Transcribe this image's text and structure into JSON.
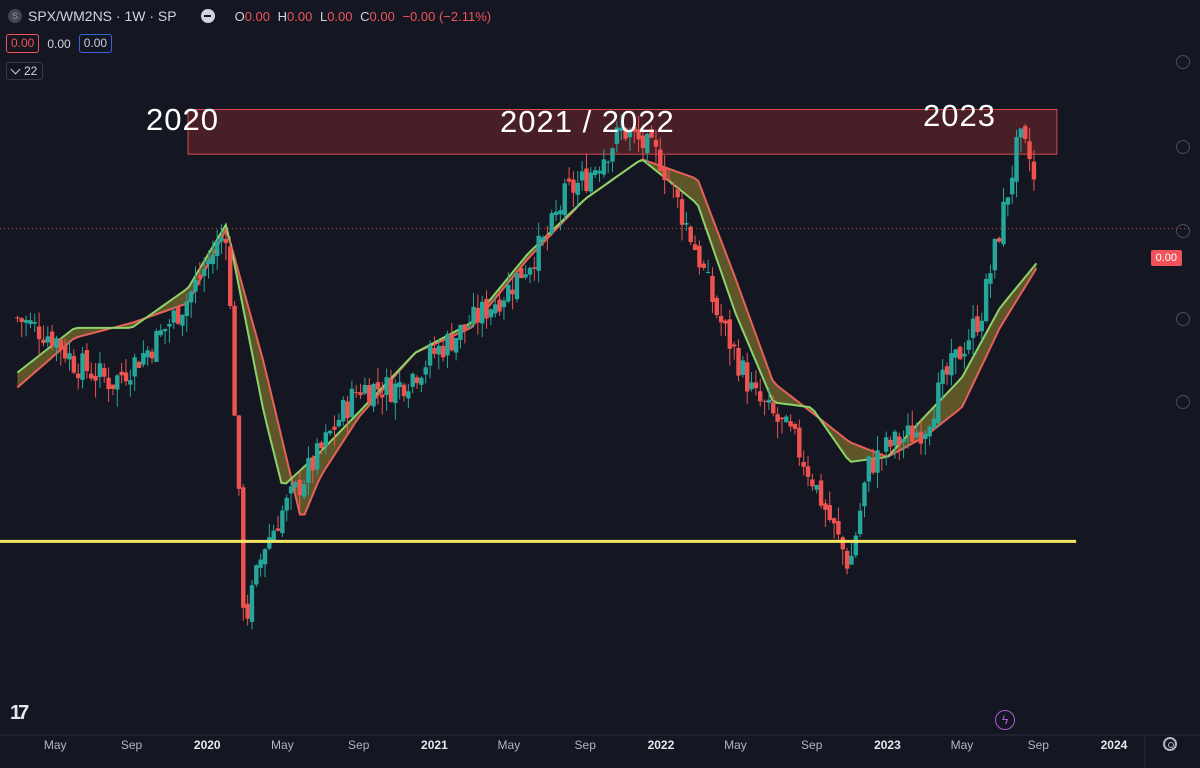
{
  "header": {
    "symbol_badge": "S",
    "symbol": "SPX/WM2NS · 1W · SP",
    "ohlc": [
      {
        "key": "O",
        "value": "0.00"
      },
      {
        "key": "H",
        "value": "0.00"
      },
      {
        "key": "L",
        "value": "0.00"
      },
      {
        "key": "C",
        "value": "0.00"
      }
    ],
    "change": "−0.00 (−2.11%)"
  },
  "indicator": {
    "val_red": "0.00",
    "val_mid": "0.00",
    "val_blue": "0.00"
  },
  "collapse": {
    "count": "22"
  },
  "annotations": [
    "2020",
    "2021 / 2022",
    "2023"
  ],
  "price_label": "0.00",
  "colors": {
    "up": "#26a69a",
    "down": "#ef5350",
    "fast_ma": "#8bd36a",
    "slow_ma": "#e8605a",
    "fill": "#9a8a2e",
    "resistance": "#8a2a2e",
    "support": "#f5e663"
  },
  "icons": {
    "logo": "tradingview-logo-icon",
    "bolt": "lightning-icon",
    "settings": "gear-icon"
  },
  "chart_data": {
    "type": "candlestick",
    "title": "SPX/WM2NS · 1W · SP",
    "x_ticks": [
      {
        "label": "May",
        "date": "2019-05"
      },
      {
        "label": "Sep",
        "date": "2019-09"
      },
      {
        "label": "2020",
        "date": "2020-01"
      },
      {
        "label": "May",
        "date": "2020-05"
      },
      {
        "label": "Sep",
        "date": "2020-09"
      },
      {
        "label": "2021",
        "date": "2021-01"
      },
      {
        "label": "May",
        "date": "2021-05"
      },
      {
        "label": "Sep",
        "date": "2021-09"
      },
      {
        "label": "2022",
        "date": "2022-01"
      },
      {
        "label": "May",
        "date": "2022-05"
      },
      {
        "label": "Sep",
        "date": "2022-09"
      },
      {
        "label": "2023",
        "date": "2023-01"
      },
      {
        "label": "May",
        "date": "2023-05"
      },
      {
        "label": "Sep",
        "date": "2023-09"
      },
      {
        "label": "2024",
        "date": "2024-01"
      }
    ],
    "y_ticks": [],
    "close_path": [
      {
        "date": "2019-03",
        "v": 0.54
      },
      {
        "date": "2019-05",
        "v": 0.5
      },
      {
        "date": "2019-06",
        "v": 0.45
      },
      {
        "date": "2019-08",
        "v": 0.41
      },
      {
        "date": "2019-10",
        "v": 0.48
      },
      {
        "date": "2019-12",
        "v": 0.58
      },
      {
        "date": "2020-02",
        "v": 0.72
      },
      {
        "date": "2020-03",
        "v": -0.08
      },
      {
        "date": "2020-04",
        "v": 0.08
      },
      {
        "date": "2020-05",
        "v": 0.15
      },
      {
        "date": "2020-07",
        "v": 0.27
      },
      {
        "date": "2020-08",
        "v": 0.34
      },
      {
        "date": "2020-09",
        "v": 0.4
      },
      {
        "date": "2020-11",
        "v": 0.4
      },
      {
        "date": "2020-12",
        "v": 0.43
      },
      {
        "date": "2021-01",
        "v": 0.47
      },
      {
        "date": "2021-03",
        "v": 0.53
      },
      {
        "date": "2021-05",
        "v": 0.6
      },
      {
        "date": "2021-07",
        "v": 0.7
      },
      {
        "date": "2021-08",
        "v": 0.79
      },
      {
        "date": "2021-09",
        "v": 0.82
      },
      {
        "date": "2021-11",
        "v": 0.92
      },
      {
        "date": "2022-01",
        "v": 0.86
      },
      {
        "date": "2022-03",
        "v": 0.67
      },
      {
        "date": "2022-04",
        "v": 0.55
      },
      {
        "date": "2022-06",
        "v": 0.38
      },
      {
        "date": "2022-08",
        "v": 0.3
      },
      {
        "date": "2022-09",
        "v": 0.22
      },
      {
        "date": "2022-11",
        "v": 0.04
      },
      {
        "date": "2022-12",
        "v": 0.24
      },
      {
        "date": "2023-01",
        "v": 0.28
      },
      {
        "date": "2023-03",
        "v": 0.32
      },
      {
        "date": "2023-04",
        "v": 0.41
      },
      {
        "date": "2023-06",
        "v": 0.55
      },
      {
        "date": "2023-07",
        "v": 0.72
      },
      {
        "date": "2023-08",
        "v": 0.9
      },
      {
        "date": "2023-08-22",
        "v": 0.85
      },
      {
        "date": "2023-08-29",
        "v": 0.76
      }
    ],
    "fast_ma": [
      {
        "date": "2019-03",
        "v": 0.43
      },
      {
        "date": "2019-06",
        "v": 0.52
      },
      {
        "date": "2019-09",
        "v": 0.52
      },
      {
        "date": "2019-12",
        "v": 0.6
      },
      {
        "date": "2020-02",
        "v": 0.73
      },
      {
        "date": "2020-04",
        "v": 0.35
      },
      {
        "date": "2020-05",
        "v": 0.2
      },
      {
        "date": "2020-07",
        "v": 0.27
      },
      {
        "date": "2020-09",
        "v": 0.35
      },
      {
        "date": "2020-12",
        "v": 0.47
      },
      {
        "date": "2021-03",
        "v": 0.53
      },
      {
        "date": "2021-06",
        "v": 0.67
      },
      {
        "date": "2021-09",
        "v": 0.78
      },
      {
        "date": "2021-12",
        "v": 0.86
      },
      {
        "date": "2022-03",
        "v": 0.77
      },
      {
        "date": "2022-05",
        "v": 0.55
      },
      {
        "date": "2022-07",
        "v": 0.37
      },
      {
        "date": "2022-09",
        "v": 0.36
      },
      {
        "date": "2022-11",
        "v": 0.25
      },
      {
        "date": "2023-01",
        "v": 0.26
      },
      {
        "date": "2023-03",
        "v": 0.34
      },
      {
        "date": "2023-05",
        "v": 0.42
      },
      {
        "date": "2023-07",
        "v": 0.56
      },
      {
        "date": "2023-08-29",
        "v": 0.65
      }
    ],
    "slow_ma": [
      {
        "date": "2019-03",
        "v": 0.4
      },
      {
        "date": "2019-06",
        "v": 0.5
      },
      {
        "date": "2019-09",
        "v": 0.53
      },
      {
        "date": "2019-12",
        "v": 0.57
      },
      {
        "date": "2020-02",
        "v": 0.72
      },
      {
        "date": "2020-04",
        "v": 0.45
      },
      {
        "date": "2020-06",
        "v": 0.13
      },
      {
        "date": "2020-07",
        "v": 0.22
      },
      {
        "date": "2020-09",
        "v": 0.34
      },
      {
        "date": "2020-12",
        "v": 0.47
      },
      {
        "date": "2021-03",
        "v": 0.52
      },
      {
        "date": "2021-06",
        "v": 0.66
      },
      {
        "date": "2021-09",
        "v": 0.78
      },
      {
        "date": "2021-12",
        "v": 0.86
      },
      {
        "date": "2022-03",
        "v": 0.82
      },
      {
        "date": "2022-05",
        "v": 0.62
      },
      {
        "date": "2022-07",
        "v": 0.41
      },
      {
        "date": "2022-09",
        "v": 0.35
      },
      {
        "date": "2022-11",
        "v": 0.29
      },
      {
        "date": "2023-01",
        "v": 0.26
      },
      {
        "date": "2023-03",
        "v": 0.3
      },
      {
        "date": "2023-05",
        "v": 0.36
      },
      {
        "date": "2023-07",
        "v": 0.52
      },
      {
        "date": "2023-08-29",
        "v": 0.64
      }
    ],
    "resistance_zone": {
      "from": "2019-12",
      "to": "2023-10",
      "low": 0.87,
      "high": 0.96
    },
    "support_line": {
      "from": "2019-02",
      "to": "2023-11",
      "v": 0.09
    },
    "last_price_line": 0.72,
    "ylim": [
      -0.3,
      1.1
    ],
    "grid": false,
    "legend": "top-left"
  }
}
